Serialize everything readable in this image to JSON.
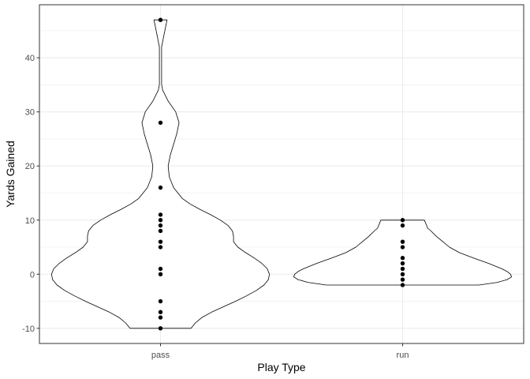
{
  "chart_data": {
    "type": "violin",
    "xlabel": "Play Type",
    "ylabel": "Yards Gained",
    "categories": [
      "pass",
      "run"
    ],
    "ylim": [
      -12.8,
      49.8
    ],
    "yticks": [
      -10,
      0,
      10,
      20,
      30,
      40
    ],
    "ytick_labels": [
      "-10",
      "0",
      "10",
      "20",
      "30",
      "40"
    ],
    "grid": true,
    "points": {
      "pass": [
        47,
        28,
        16,
        11,
        10,
        9,
        8,
        6,
        5,
        1,
        0,
        -5,
        -7,
        -8,
        -10
      ],
      "run": [
        10,
        9,
        6,
        5,
        3,
        2,
        1,
        0,
        -1,
        -2
      ]
    },
    "density_profiles": {
      "pass": {
        "y": [
          -10,
          -9,
          -8,
          -7,
          -6,
          -5,
          -4,
          -3,
          -2,
          -1,
          0,
          1,
          2,
          3,
          4,
          5,
          6,
          7,
          8,
          9,
          10,
          11,
          12,
          13,
          14,
          16,
          18,
          20,
          22,
          24,
          26,
          28,
          30,
          32,
          34,
          35,
          36,
          38,
          40,
          42,
          43,
          44,
          45,
          46,
          47
        ],
        "halfwidth": [
          0.28,
          0.32,
          0.38,
          0.47,
          0.58,
          0.69,
          0.79,
          0.88,
          0.95,
          0.99,
          1.0,
          0.98,
          0.93,
          0.86,
          0.78,
          0.71,
          0.67,
          0.67,
          0.66,
          0.62,
          0.55,
          0.46,
          0.36,
          0.27,
          0.2,
          0.12,
          0.08,
          0.07,
          0.09,
          0.12,
          0.15,
          0.17,
          0.14,
          0.07,
          0.02,
          0.01,
          0.01,
          0.01,
          0.01,
          0.01,
          0.02,
          0.03,
          0.04,
          0.05,
          0.06
        ]
      },
      "run": {
        "y": [
          -2,
          -1.5,
          -1,
          -0.5,
          0,
          0.5,
          1,
          1.5,
          2,
          3,
          4,
          5,
          6,
          7,
          8,
          8.5,
          9,
          9.5,
          10
        ],
        "halfwidth": [
          0.7,
          0.87,
          0.96,
          1.0,
          0.99,
          0.96,
          0.91,
          0.85,
          0.79,
          0.65,
          0.52,
          0.43,
          0.37,
          0.31,
          0.26,
          0.23,
          0.22,
          0.21,
          0.2
        ]
      }
    }
  }
}
